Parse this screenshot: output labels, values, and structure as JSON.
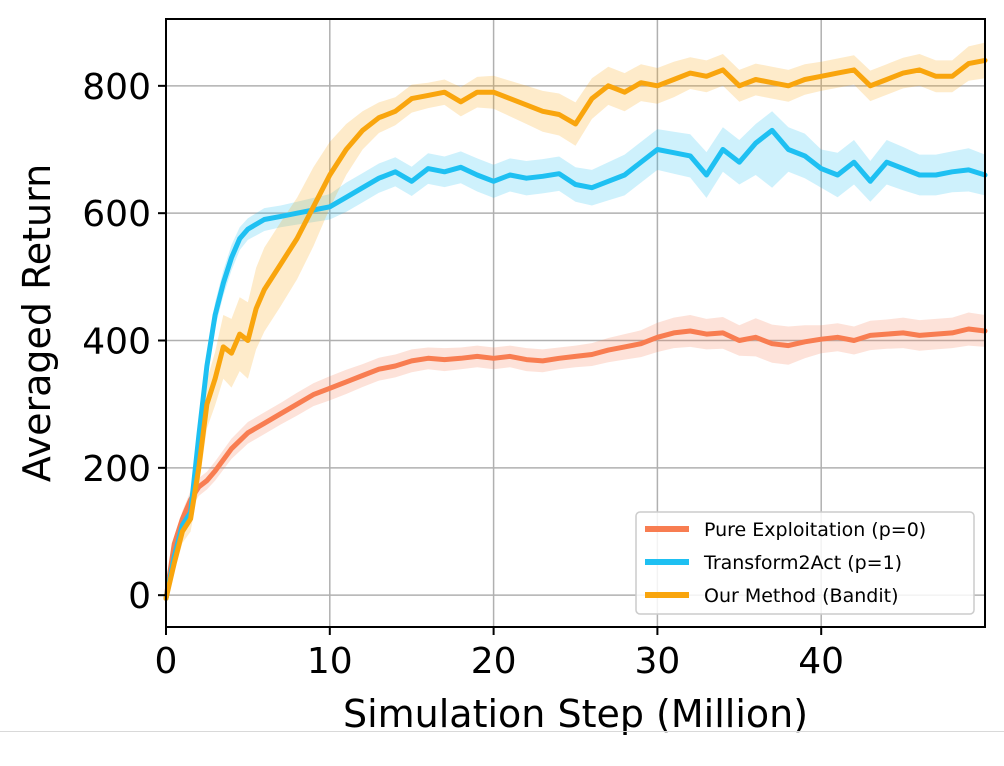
{
  "chart_data": {
    "type": "line",
    "xlabel": "Simulation Step (Million)",
    "ylabel": "Averaged Return",
    "xlim": [
      0,
      50
    ],
    "ylim": [
      -50,
      905
    ],
    "xticks": [
      0,
      10,
      20,
      30,
      40
    ],
    "yticks": [
      0,
      200,
      400,
      600,
      800
    ],
    "grid": true,
    "legend_position": "lower-right",
    "series": [
      {
        "name": "Pure Exploitation (p=0)",
        "color": "#f87d51",
        "x": [
          0,
          0.5,
          1,
          1.5,
          2,
          2.5,
          3,
          4,
          5,
          6,
          7,
          8,
          9,
          10,
          11,
          12,
          13,
          14,
          15,
          16,
          17,
          18,
          19,
          20,
          21,
          22,
          23,
          24,
          25,
          26,
          27,
          28,
          29,
          30,
          31,
          32,
          33,
          34,
          35,
          36,
          37,
          38,
          39,
          40,
          41,
          42,
          43,
          44,
          45,
          46,
          47,
          48,
          49,
          50
        ],
        "y": [
          -5,
          80,
          120,
          150,
          170,
          180,
          195,
          230,
          255,
          270,
          285,
          300,
          315,
          325,
          335,
          345,
          355,
          360,
          368,
          372,
          370,
          372,
          375,
          372,
          375,
          370,
          368,
          372,
          375,
          378,
          385,
          390,
          395,
          405,
          412,
          415,
          410,
          412,
          400,
          405,
          395,
          392,
          398,
          402,
          405,
          400,
          408,
          410,
          412,
          408,
          410,
          412,
          418,
          415
        ],
        "lower": [
          -10,
          70,
          108,
          136,
          156,
          166,
          180,
          214,
          238,
          253,
          268,
          282,
          297,
          306,
          316,
          327,
          337,
          342,
          350,
          355,
          352,
          355,
          358,
          355,
          358,
          352,
          350,
          355,
          358,
          360,
          366,
          370,
          374,
          382,
          388,
          390,
          386,
          387,
          376,
          375,
          365,
          362,
          372,
          380,
          383,
          378,
          385,
          387,
          388,
          384,
          386,
          388,
          392,
          390
        ],
        "upper": [
          0,
          90,
          132,
          164,
          184,
          194,
          210,
          246,
          272,
          287,
          302,
          318,
          333,
          344,
          354,
          363,
          373,
          378,
          386,
          389,
          388,
          389,
          392,
          389,
          392,
          388,
          386,
          389,
          392,
          396,
          404,
          410,
          416,
          428,
          436,
          440,
          434,
          437,
          424,
          435,
          425,
          422,
          424,
          424,
          427,
          422,
          431,
          433,
          436,
          432,
          434,
          436,
          444,
          440
        ]
      },
      {
        "name": "Transform2Act (p=1)",
        "color": "#1ec0f2",
        "x": [
          0,
          0.5,
          1,
          1.5,
          2,
          2.5,
          3,
          3.5,
          4,
          4.5,
          5,
          6,
          7,
          8,
          9,
          10,
          11,
          12,
          13,
          14,
          15,
          16,
          17,
          18,
          19,
          20,
          21,
          22,
          23,
          24,
          25,
          26,
          27,
          28,
          29,
          30,
          31,
          32,
          33,
          34,
          35,
          36,
          37,
          38,
          39,
          40,
          41,
          42,
          43,
          44,
          45,
          46,
          47,
          48,
          49,
          50
        ],
        "y": [
          -5,
          60,
          110,
          130,
          250,
          360,
          440,
          490,
          530,
          560,
          575,
          590,
          595,
          600,
          605,
          610,
          625,
          640,
          655,
          665,
          650,
          670,
          665,
          672,
          660,
          650,
          660,
          655,
          658,
          662,
          645,
          640,
          650,
          660,
          680,
          700,
          695,
          690,
          660,
          700,
          680,
          710,
          730,
          700,
          690,
          670,
          660,
          680,
          650,
          680,
          670,
          660,
          660,
          665,
          668,
          660
        ],
        "lower": [
          -10,
          50,
          98,
          116,
          230,
          340,
          420,
          470,
          510,
          542,
          558,
          572,
          578,
          582,
          586,
          590,
          602,
          617,
          632,
          642,
          627,
          646,
          641,
          647,
          634,
          624,
          634,
          628,
          631,
          635,
          618,
          612,
          620,
          628,
          648,
          668,
          662,
          656,
          624,
          665,
          645,
          660,
          640,
          665,
          655,
          640,
          625,
          645,
          618,
          645,
          636,
          628,
          628,
          633,
          634,
          628
        ],
        "upper": [
          0,
          70,
          122,
          144,
          270,
          380,
          460,
          510,
          550,
          578,
          592,
          608,
          612,
          618,
          624,
          630,
          648,
          663,
          678,
          688,
          673,
          694,
          689,
          697,
          686,
          676,
          686,
          682,
          685,
          689,
          672,
          668,
          680,
          692,
          712,
          732,
          728,
          724,
          696,
          735,
          715,
          740,
          760,
          735,
          725,
          700,
          695,
          715,
          682,
          715,
          704,
          692,
          692,
          697,
          702,
          692
        ]
      },
      {
        "name": "Our Method (Bandit)",
        "color": "#f9a50d",
        "x": [
          0,
          0.5,
          1,
          1.5,
          2,
          2.5,
          3,
          3.5,
          4,
          4.5,
          5,
          5.5,
          6,
          7,
          8,
          9,
          10,
          11,
          12,
          13,
          14,
          15,
          16,
          17,
          18,
          19,
          20,
          21,
          22,
          23,
          24,
          25,
          26,
          27,
          28,
          29,
          30,
          31,
          32,
          33,
          34,
          35,
          36,
          37,
          38,
          39,
          40,
          41,
          42,
          43,
          44,
          45,
          46,
          47,
          48,
          49,
          50
        ],
        "y": [
          -5,
          50,
          100,
          120,
          200,
          300,
          340,
          390,
          380,
          410,
          400,
          450,
          480,
          520,
          560,
          610,
          660,
          700,
          730,
          750,
          760,
          780,
          785,
          790,
          775,
          790,
          790,
          780,
          770,
          760,
          755,
          740,
          780,
          800,
          790,
          805,
          800,
          810,
          820,
          815,
          825,
          800,
          810,
          805,
          800,
          810,
          815,
          820,
          825,
          800,
          810,
          820,
          825,
          815,
          815,
          835,
          840
        ],
        "lower": [
          -10,
          35,
          82,
          100,
          170,
          262,
          298,
          340,
          326,
          352,
          340,
          386,
          414,
          454,
          496,
          548,
          608,
          660,
          700,
          726,
          738,
          758,
          765,
          770,
          752,
          766,
          764,
          752,
          740,
          728,
          722,
          706,
          748,
          770,
          760,
          776,
          772,
          782,
          795,
          790,
          800,
          775,
          785,
          780,
          775,
          786,
          792,
          797,
          802,
          776,
          786,
          796,
          800,
          790,
          790,
          808,
          812
        ],
        "upper": [
          0,
          65,
          118,
          140,
          230,
          338,
          382,
          440,
          434,
          468,
          460,
          514,
          546,
          586,
          624,
          672,
          712,
          740,
          760,
          774,
          782,
          802,
          805,
          810,
          798,
          814,
          816,
          808,
          800,
          792,
          788,
          774,
          812,
          830,
          820,
          834,
          828,
          838,
          845,
          840,
          850,
          825,
          835,
          830,
          825,
          834,
          838,
          843,
          848,
          824,
          834,
          844,
          850,
          840,
          840,
          862,
          868
        ]
      }
    ]
  }
}
